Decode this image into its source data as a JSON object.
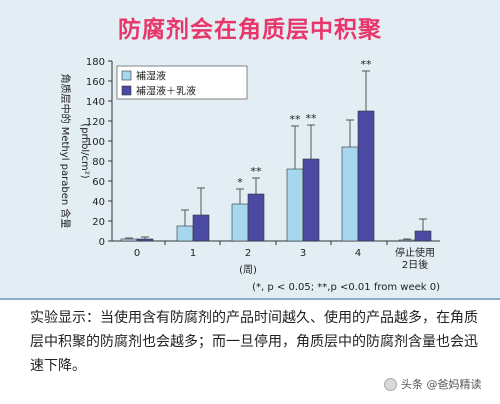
{
  "title": "防腐剂会在角质层中积聚",
  "caption": "实验显示：当使用含有防腐剂的产品时间越久、使用的产品越多，在角质层中积聚的防腐剂也会越多；而一旦停用，角质层中的防腐剂含量也会迅速下降。",
  "watermark": "头条 @爸妈精读",
  "colors": {
    "title": "#e8356a",
    "series1": "#a6d7ee",
    "series2": "#4b4aa2"
  },
  "chart_data": {
    "type": "bar",
    "categories": [
      "0",
      "1",
      "2",
      "3",
      "4",
      "停止使用2日後"
    ],
    "xlabel": "(周)",
    "ylabel": "角质层中的 Methyl paraben 含量",
    "yunit": "(pmol/cm²)",
    "ylim": [
      0,
      180
    ],
    "yticks": [
      0,
      20,
      40,
      60,
      80,
      100,
      120,
      140,
      160,
      180
    ],
    "legend_position": "top-left",
    "series": [
      {
        "name": "補湿液",
        "values": [
          2,
          15,
          37,
          72,
          94,
          1
        ],
        "errors": [
          1,
          16,
          15,
          43,
          27,
          1
        ]
      },
      {
        "name": "補湿液＋乳液",
        "values": [
          2,
          26,
          47,
          82,
          130,
          10
        ],
        "errors": [
          2,
          27,
          16,
          34,
          40,
          12
        ]
      }
    ],
    "annotations": [
      {
        "category_index": 2,
        "series_index": 0,
        "text": "*"
      },
      {
        "category_index": 2,
        "series_index": 1,
        "text": "**"
      },
      {
        "category_index": 3,
        "series_index": 0,
        "text": "**"
      },
      {
        "category_index": 3,
        "series_index": 1,
        "text": "**"
      },
      {
        "category_index": 4,
        "series_index": 1,
        "text": "**"
      }
    ],
    "footnote": "(*, p < 0.05; **,p <0.01 from week 0)"
  }
}
